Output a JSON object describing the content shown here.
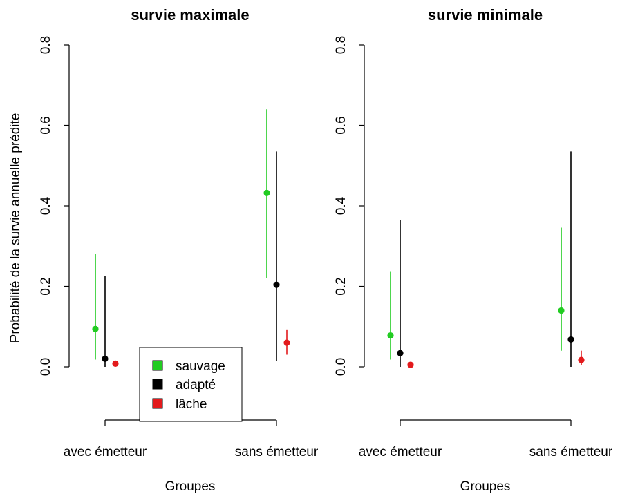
{
  "chart_data": {
    "type": "scatter",
    "ylabel": "Probabilité de la survie annuelle prédite",
    "xlabel": "Groupes",
    "categories": [
      "avec émetteur",
      "sans émetteur"
    ],
    "ylim": [
      0,
      0.8
    ],
    "yticks": [
      "0.0",
      "0.2",
      "0.4",
      "0.6",
      "0.8"
    ],
    "legend": {
      "placement": "bottom-left of first panel",
      "entries": [
        {
          "label": "sauvage",
          "color": "#22cc22"
        },
        {
          "label": "adapté",
          "color": "#000000"
        },
        {
          "label": "lâche",
          "color": "#e31a1c"
        }
      ]
    },
    "panels": [
      {
        "title": "survie maximale",
        "series": [
          {
            "key": "sauvage",
            "color": "#22cc22",
            "points": [
              {
                "category": "avec émetteur",
                "y": 0.094,
                "lower": 0.018,
                "upper": 0.28
              },
              {
                "category": "sans émetteur",
                "y": 0.432,
                "lower": 0.22,
                "upper": 0.64
              }
            ]
          },
          {
            "key": "adapté",
            "color": "#000000",
            "points": [
              {
                "category": "avec émetteur",
                "y": 0.02,
                "lower": 0.0,
                "upper": 0.226
              },
              {
                "category": "sans émetteur",
                "y": 0.204,
                "lower": 0.015,
                "upper": 0.535
              }
            ]
          },
          {
            "key": "lâche",
            "color": "#e31a1c",
            "points": [
              {
                "category": "avec émetteur",
                "y": 0.008,
                "lower": 0.004,
                "upper": 0.012
              },
              {
                "category": "sans émetteur",
                "y": 0.06,
                "lower": 0.03,
                "upper": 0.093
              }
            ]
          }
        ]
      },
      {
        "title": "survie minimale",
        "series": [
          {
            "key": "sauvage",
            "color": "#22cc22",
            "points": [
              {
                "category": "avec émetteur",
                "y": 0.078,
                "lower": 0.018,
                "upper": 0.236
              },
              {
                "category": "sans émetteur",
                "y": 0.14,
                "lower": 0.04,
                "upper": 0.346
              }
            ]
          },
          {
            "key": "adapté",
            "color": "#000000",
            "points": [
              {
                "category": "avec émetteur",
                "y": 0.034,
                "lower": 0.0,
                "upper": 0.365
              },
              {
                "category": "sans émetteur",
                "y": 0.068,
                "lower": 0.0,
                "upper": 0.535
              }
            ]
          },
          {
            "key": "lâche",
            "color": "#e31a1c",
            "points": [
              {
                "category": "avec émetteur",
                "y": 0.005,
                "lower": 0.002,
                "upper": 0.009
              },
              {
                "category": "sans émetteur",
                "y": 0.017,
                "lower": 0.005,
                "upper": 0.04
              }
            ]
          }
        ]
      }
    ]
  }
}
